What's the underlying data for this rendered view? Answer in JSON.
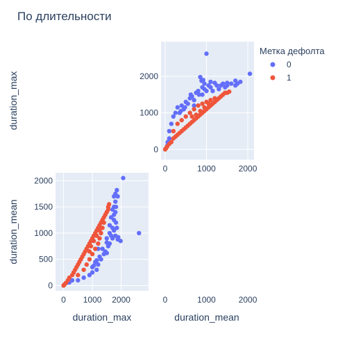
{
  "title": "По длительности",
  "legend": {
    "title": "Метка дефолта",
    "items": [
      {
        "label": "0",
        "color": "#636efa"
      },
      {
        "label": "1",
        "color": "#ef553b"
      }
    ]
  },
  "colors": {
    "plot_bg": "#e5ecf6",
    "grid": "#ffffff",
    "series_0": "#636efa",
    "series_1": "#ef553b"
  },
  "chart_data": [
    {
      "type": "scatter",
      "panel": "top-right",
      "xlabel": "duration_mean",
      "ylabel": "duration_max",
      "show_x_title": false,
      "show_y_title": true,
      "xlim": [
        -100,
        2150
      ],
      "ylim": [
        -280,
        2950
      ],
      "xticks": [
        0,
        1000,
        2000
      ],
      "yticks": [
        0,
        1000,
        2000
      ],
      "grid": true,
      "series": [
        {
          "name": "0",
          "color": "#636efa",
          "points": [
            [
              1000,
              2620
            ],
            [
              2050,
              2070
            ],
            [
              850,
              1980
            ],
            [
              920,
              1900
            ],
            [
              880,
              1880
            ],
            [
              1700,
              1880
            ],
            [
              1820,
              1850
            ],
            [
              1100,
              1850
            ],
            [
              1200,
              1820
            ],
            [
              1400,
              1800
            ],
            [
              1500,
              1750
            ],
            [
              600,
              1400
            ],
            [
              650,
              1450
            ],
            [
              700,
              1350
            ],
            [
              800,
              1600
            ],
            [
              900,
              1700
            ],
            [
              1000,
              1600
            ],
            [
              1300,
              1650
            ],
            [
              400,
              1200
            ],
            [
              500,
              1300
            ],
            [
              450,
              1100
            ],
            [
              300,
              1150
            ],
            [
              250,
              1000
            ],
            [
              200,
              900
            ],
            [
              150,
              700
            ],
            [
              100,
              500
            ],
            [
              100,
              300
            ],
            [
              60,
              200
            ],
            [
              50,
              100
            ],
            [
              900,
              1500
            ],
            [
              1100,
              1700
            ],
            [
              1250,
              1750
            ],
            [
              1450,
              1700
            ],
            [
              1600,
              1800
            ],
            [
              1700,
              1750
            ],
            [
              1750,
              1800
            ],
            [
              750,
              1550
            ],
            [
              350,
              1000
            ],
            [
              550,
              1250
            ],
            [
              620,
              1500
            ],
            [
              1050,
              1750
            ],
            [
              1500,
              1820
            ],
            [
              950,
              1650
            ],
            [
              1150,
              1600
            ],
            [
              1350,
              1750
            ],
            [
              480,
              1150
            ],
            [
              380,
              1050
            ],
            [
              820,
              1500
            ],
            [
              700,
              1200
            ],
            [
              950,
              1800
            ]
          ]
        },
        {
          "name": "1",
          "color": "#ef553b",
          "points": [
            [
              0,
              0
            ],
            [
              20,
              30
            ],
            [
              50,
              80
            ],
            [
              100,
              150
            ],
            [
              150,
              200
            ],
            [
              200,
              300
            ],
            [
              250,
              350
            ],
            [
              300,
              400
            ],
            [
              350,
              450
            ],
            [
              400,
              500
            ],
            [
              450,
              550
            ],
            [
              500,
              600
            ],
            [
              550,
              650
            ],
            [
              600,
              700
            ],
            [
              650,
              750
            ],
            [
              700,
              800
            ],
            [
              750,
              850
            ],
            [
              800,
              900
            ],
            [
              850,
              950
            ],
            [
              900,
              1000
            ],
            [
              950,
              1050
            ],
            [
              1000,
              1100
            ],
            [
              1050,
              1150
            ],
            [
              1100,
              1200
            ],
            [
              1150,
              1250
            ],
            [
              1200,
              1300
            ],
            [
              1250,
              1350
            ],
            [
              1300,
              1400
            ],
            [
              1350,
              1450
            ],
            [
              1400,
              1500
            ],
            [
              1450,
              1550
            ],
            [
              1500,
              1550
            ],
            [
              1550,
              1580
            ],
            [
              800,
              1200
            ],
            [
              700,
              1100
            ],
            [
              900,
              1250
            ],
            [
              1000,
              1300
            ],
            [
              1100,
              1350
            ],
            [
              1200,
              1400
            ],
            [
              600,
              1000
            ],
            [
              500,
              900
            ],
            [
              400,
              800
            ],
            [
              300,
              700
            ],
            [
              200,
              500
            ],
            [
              1050,
              1250
            ],
            [
              950,
              1150
            ],
            [
              850,
              1050
            ],
            [
              750,
              950
            ],
            [
              650,
              900
            ]
          ]
        }
      ]
    },
    {
      "type": "scatter",
      "panel": "bottom-left",
      "xlabel": "duration_max",
      "ylabel": "duration_mean",
      "show_x_title": true,
      "show_y_title": true,
      "xlim": [
        -280,
        2950
      ],
      "ylim": [
        -100,
        2150
      ],
      "xticks": [
        0,
        1000,
        2000
      ],
      "yticks": [
        0,
        500,
        1000,
        1500,
        2000
      ],
      "grid": true,
      "series": [
        {
          "name": "0",
          "color": "#636efa",
          "points": [
            [
              2620,
              1000
            ],
            [
              2070,
              2050
            ],
            [
              1980,
              850
            ],
            [
              1900,
              920
            ],
            [
              1880,
              880
            ],
            [
              1880,
              1700
            ],
            [
              1850,
              1820
            ],
            [
              1850,
              1100
            ],
            [
              1820,
              1200
            ],
            [
              1800,
              1400
            ],
            [
              1750,
              1500
            ],
            [
              1400,
              600
            ],
            [
              1450,
              650
            ],
            [
              1350,
              700
            ],
            [
              1600,
              800
            ],
            [
              1700,
              900
            ],
            [
              1600,
              1000
            ],
            [
              1650,
              1300
            ],
            [
              1200,
              400
            ],
            [
              1300,
              500
            ],
            [
              1100,
              450
            ],
            [
              1150,
              300
            ],
            [
              1000,
              250
            ],
            [
              900,
              200
            ],
            [
              700,
              150
            ],
            [
              500,
              100
            ],
            [
              300,
              100
            ],
            [
              200,
              60
            ],
            [
              100,
              50
            ],
            [
              1500,
              900
            ],
            [
              1700,
              1100
            ],
            [
              1750,
              1250
            ],
            [
              1700,
              1450
            ],
            [
              1800,
              1600
            ],
            [
              1750,
              1700
            ],
            [
              1800,
              1750
            ],
            [
              1550,
              750
            ],
            [
              1000,
              350
            ],
            [
              1250,
              550
            ],
            [
              1500,
              620
            ],
            [
              1750,
              1050
            ],
            [
              1820,
              1500
            ],
            [
              1650,
              950
            ],
            [
              1600,
              1150
            ],
            [
              1750,
              1350
            ],
            [
              1150,
              480
            ],
            [
              1050,
              380
            ],
            [
              1500,
              820
            ],
            [
              1200,
              700
            ],
            [
              1800,
              950
            ]
          ]
        },
        {
          "name": "1",
          "color": "#ef553b",
          "points": [
            [
              0,
              0
            ],
            [
              30,
              20
            ],
            [
              80,
              50
            ],
            [
              150,
              100
            ],
            [
              200,
              150
            ],
            [
              300,
              200
            ],
            [
              350,
              250
            ],
            [
              400,
              300
            ],
            [
              450,
              350
            ],
            [
              500,
              400
            ],
            [
              550,
              450
            ],
            [
              600,
              500
            ],
            [
              650,
              550
            ],
            [
              700,
              600
            ],
            [
              750,
              650
            ],
            [
              800,
              700
            ],
            [
              850,
              750
            ],
            [
              900,
              800
            ],
            [
              950,
              850
            ],
            [
              1000,
              900
            ],
            [
              1050,
              950
            ],
            [
              1100,
              1000
            ],
            [
              1150,
              1050
            ],
            [
              1200,
              1100
            ],
            [
              1250,
              1150
            ],
            [
              1300,
              1200
            ],
            [
              1350,
              1250
            ],
            [
              1400,
              1300
            ],
            [
              1450,
              1350
            ],
            [
              1500,
              1400
            ],
            [
              1550,
              1450
            ],
            [
              1550,
              1500
            ],
            [
              1580,
              1550
            ],
            [
              1200,
              800
            ],
            [
              1100,
              700
            ],
            [
              1250,
              900
            ],
            [
              1300,
              1000
            ],
            [
              1350,
              1100
            ],
            [
              1400,
              1200
            ],
            [
              1000,
              600
            ],
            [
              900,
              500
            ],
            [
              800,
              400
            ],
            [
              700,
              300
            ],
            [
              500,
              200
            ],
            [
              1250,
              1050
            ],
            [
              1150,
              950
            ],
            [
              1050,
              850
            ],
            [
              950,
              750
            ],
            [
              900,
              650
            ]
          ]
        }
      ]
    }
  ]
}
